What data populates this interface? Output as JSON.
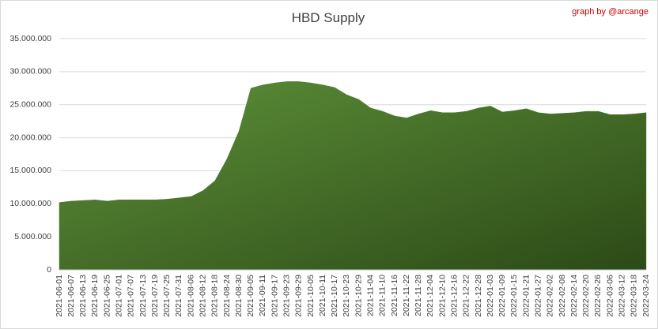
{
  "chart_data": {
    "type": "area",
    "title": "HBD Supply",
    "annotation": "graph by @arcange",
    "categories": [
      "2021-06-01",
      "2021-06-07",
      "2021-06-13",
      "2021-06-19",
      "2021-06-25",
      "2021-07-01",
      "2021-07-07",
      "2021-07-13",
      "2021-07-19",
      "2021-07-25",
      "2021-07-31",
      "2021-08-06",
      "2021-08-12",
      "2021-08-18",
      "2021-08-24",
      "2021-08-30",
      "2021-09-05",
      "2021-09-11",
      "2021-09-17",
      "2021-09-23",
      "2021-09-29",
      "2021-10-05",
      "2021-10-11",
      "2021-10-17",
      "2021-10-23",
      "2021-10-29",
      "2021-11-04",
      "2021-11-10",
      "2021-11-16",
      "2021-11-22",
      "2021-11-28",
      "2021-12-04",
      "2021-12-10",
      "2021-12-16",
      "2021-12-22",
      "2021-12-28",
      "2022-01-03",
      "2022-01-09",
      "2022-01-15",
      "2022-01-21",
      "2022-01-27",
      "2022-02-02",
      "2022-02-08",
      "2022-02-14",
      "2022-02-20",
      "2022-02-26",
      "2022-03-06",
      "2022-03-12",
      "2022-03-18",
      "2022-03-24"
    ],
    "values": [
      10200000,
      10400000,
      10500000,
      10600000,
      10400000,
      10600000,
      10600000,
      10600000,
      10600000,
      10700000,
      10900000,
      11100000,
      12000000,
      13500000,
      16800000,
      21000000,
      27500000,
      28000000,
      28300000,
      28500000,
      28500000,
      28300000,
      28000000,
      27600000,
      26500000,
      25800000,
      24500000,
      24000000,
      23300000,
      23000000,
      23600000,
      24100000,
      23800000,
      23800000,
      24000000,
      24500000,
      24800000,
      23900000,
      24100000,
      24400000,
      23800000,
      23600000,
      23700000,
      23800000,
      24000000,
      24000000,
      23500000,
      23500000,
      23600000,
      23800000
    ],
    "color": "#4f7f2e",
    "ylim": [
      0,
      35000000
    ],
    "yticks": [
      0,
      {
        "value": 5000000,
        "label": "5.000.000"
      },
      {
        "value": 10000000,
        "label": "10.000.000"
      },
      {
        "value": 15000000,
        "label": "15.000.000"
      },
      {
        "value": 20000000,
        "label": "20.000.000"
      },
      {
        "value": 25000000,
        "label": "25.000.000"
      },
      {
        "value": 30000000,
        "label": "30.000.000"
      },
      {
        "value": 35000000,
        "label": "35.000.000"
      }
    ],
    "grid": true
  }
}
